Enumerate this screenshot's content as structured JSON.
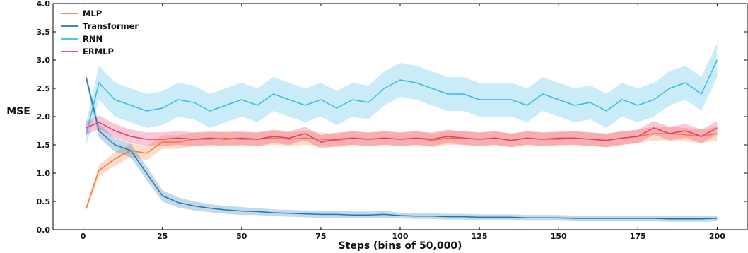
{
  "chart_data": {
    "type": "line",
    "xlabel": "Steps (bins of 50,000)",
    "ylabel": "MSE",
    "xlim": [
      -9.5,
      209.5
    ],
    "ylim": [
      0.0,
      4.0
    ],
    "xticks": [
      0,
      25,
      50,
      75,
      100,
      125,
      150,
      175,
      200
    ],
    "yticks": [
      0.0,
      0.5,
      1.0,
      1.5,
      2.0,
      2.5,
      3.0,
      3.5,
      4.0
    ],
    "xtick_labels": [
      "0",
      "25",
      "50",
      "75",
      "100",
      "125",
      "150",
      "175",
      "200"
    ],
    "ytick_labels": [
      "0.0",
      "0.5",
      "1.0",
      "1.5",
      "2.0",
      "2.5",
      "3.0",
      "3.5",
      "4.0"
    ],
    "grid": false,
    "legend_position": "top-left",
    "x": [
      1,
      5,
      10,
      15,
      20,
      25,
      30,
      35,
      40,
      45,
      50,
      55,
      60,
      65,
      70,
      75,
      80,
      85,
      90,
      95,
      100,
      105,
      110,
      115,
      120,
      125,
      130,
      135,
      140,
      145,
      150,
      155,
      160,
      165,
      170,
      175,
      180,
      185,
      190,
      195,
      200
    ],
    "series": [
      {
        "name": "MLP",
        "color": "#f07c3c",
        "values": [
          0.38,
          1.05,
          1.25,
          1.4,
          1.35,
          1.55,
          1.55,
          1.6,
          1.6,
          1.62,
          1.6,
          1.6,
          1.62,
          1.6,
          1.62,
          1.6,
          1.58,
          1.62,
          1.6,
          1.62,
          1.6,
          1.62,
          1.58,
          1.62,
          1.62,
          1.6,
          1.62,
          1.58,
          1.62,
          1.6,
          1.6,
          1.62,
          1.6,
          1.58,
          1.62,
          1.65,
          1.7,
          1.7,
          1.68,
          1.65,
          1.7
        ],
        "band": [
          0.05,
          0.1,
          0.12,
          0.12,
          0.12,
          0.12,
          0.12,
          0.12,
          0.12,
          0.12,
          0.12,
          0.12,
          0.12,
          0.12,
          0.12,
          0.12,
          0.12,
          0.12,
          0.12,
          0.12,
          0.12,
          0.12,
          0.12,
          0.12,
          0.12,
          0.12,
          0.12,
          0.12,
          0.12,
          0.12,
          0.12,
          0.12,
          0.12,
          0.12,
          0.12,
          0.12,
          0.12,
          0.12,
          0.12,
          0.12,
          0.12
        ]
      },
      {
        "name": "Transformer",
        "color": "#1f77b4",
        "values": [
          2.68,
          1.75,
          1.5,
          1.4,
          1.0,
          0.6,
          0.48,
          0.42,
          0.38,
          0.35,
          0.33,
          0.32,
          0.3,
          0.29,
          0.28,
          0.27,
          0.27,
          0.26,
          0.26,
          0.27,
          0.25,
          0.24,
          0.24,
          0.23,
          0.23,
          0.22,
          0.22,
          0.22,
          0.21,
          0.21,
          0.21,
          0.2,
          0.2,
          0.2,
          0.2,
          0.2,
          0.2,
          0.19,
          0.19,
          0.19,
          0.2
        ],
        "band": [
          0.08,
          0.12,
          0.12,
          0.12,
          0.12,
          0.1,
          0.09,
          0.08,
          0.07,
          0.07,
          0.07,
          0.06,
          0.06,
          0.06,
          0.06,
          0.06,
          0.06,
          0.06,
          0.06,
          0.06,
          0.05,
          0.05,
          0.05,
          0.05,
          0.05,
          0.05,
          0.05,
          0.05,
          0.05,
          0.05,
          0.05,
          0.05,
          0.05,
          0.05,
          0.05,
          0.05,
          0.05,
          0.05,
          0.05,
          0.05,
          0.05
        ]
      },
      {
        "name": "RNN",
        "color": "#3cb9e6",
        "values": [
          1.7,
          2.6,
          2.3,
          2.2,
          2.1,
          2.15,
          2.3,
          2.25,
          2.1,
          2.2,
          2.3,
          2.2,
          2.4,
          2.3,
          2.2,
          2.3,
          2.15,
          2.3,
          2.25,
          2.5,
          2.65,
          2.6,
          2.5,
          2.4,
          2.4,
          2.3,
          2.3,
          2.3,
          2.2,
          2.4,
          2.3,
          2.2,
          2.25,
          2.1,
          2.3,
          2.2,
          2.3,
          2.5,
          2.6,
          2.4,
          3.0
        ],
        "band": [
          0.2,
          0.3,
          0.3,
          0.3,
          0.3,
          0.3,
          0.3,
          0.3,
          0.3,
          0.3,
          0.3,
          0.3,
          0.3,
          0.3,
          0.3,
          0.3,
          0.3,
          0.3,
          0.3,
          0.3,
          0.3,
          0.3,
          0.3,
          0.3,
          0.3,
          0.3,
          0.3,
          0.3,
          0.3,
          0.3,
          0.3,
          0.3,
          0.3,
          0.3,
          0.3,
          0.3,
          0.3,
          0.3,
          0.3,
          0.3,
          0.3
        ]
      },
      {
        "name": "ERMLP",
        "color": "#e8386d",
        "values": [
          1.8,
          1.9,
          1.75,
          1.65,
          1.6,
          1.6,
          1.62,
          1.6,
          1.62,
          1.6,
          1.62,
          1.6,
          1.65,
          1.62,
          1.7,
          1.55,
          1.6,
          1.62,
          1.6,
          1.62,
          1.6,
          1.62,
          1.6,
          1.65,
          1.62,
          1.6,
          1.62,
          1.58,
          1.62,
          1.6,
          1.62,
          1.62,
          1.6,
          1.58,
          1.62,
          1.65,
          1.8,
          1.7,
          1.75,
          1.65,
          1.8
        ],
        "band": [
          0.12,
          0.12,
          0.12,
          0.12,
          0.12,
          0.12,
          0.12,
          0.12,
          0.12,
          0.12,
          0.12,
          0.12,
          0.12,
          0.12,
          0.12,
          0.12,
          0.12,
          0.12,
          0.12,
          0.12,
          0.12,
          0.12,
          0.12,
          0.12,
          0.12,
          0.12,
          0.12,
          0.12,
          0.12,
          0.12,
          0.12,
          0.12,
          0.12,
          0.12,
          0.12,
          0.12,
          0.12,
          0.12,
          0.12,
          0.12,
          0.12
        ]
      }
    ]
  }
}
